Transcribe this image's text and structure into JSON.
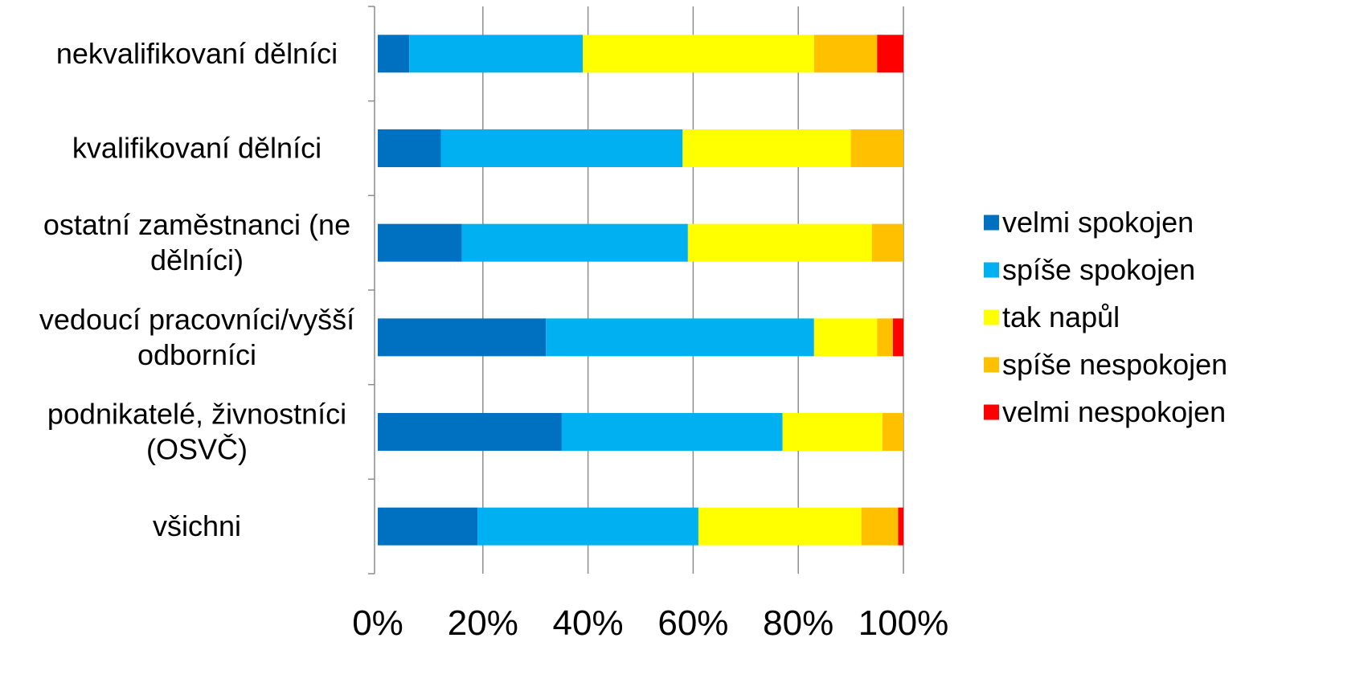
{
  "chart_data": {
    "type": "bar",
    "orientation": "horizontal",
    "stacked": "percent",
    "categories": [
      [
        "nekvalifikovaní dělníci"
      ],
      [
        "kvalifikovaní dělníci"
      ],
      [
        "ostatní zaměstnanci (ne",
        "dělníci)"
      ],
      [
        "vedoucí pracovníci/vyšší",
        "odborníci"
      ],
      [
        "podnikatelé, živnostníci",
        "(OSVČ)"
      ],
      [
        "všichni"
      ]
    ],
    "series": [
      {
        "name": "velmi spokojen",
        "color": "#0070C0",
        "values": [
          6,
          12,
          16,
          32,
          35,
          19
        ]
      },
      {
        "name": "spíše spokojen",
        "color": "#00B0F0",
        "values": [
          33,
          46,
          43,
          51,
          42,
          42
        ]
      },
      {
        "name": "tak napůl",
        "color": "#FFFF00",
        "values": [
          44,
          32,
          35,
          12,
          19,
          31
        ]
      },
      {
        "name": "spíše nespokojen",
        "color": "#FFC000",
        "values": [
          12,
          10,
          6,
          3,
          4,
          7
        ]
      },
      {
        "name": "velmi nespokojen",
        "color": "#FF0000",
        "values": [
          5,
          0,
          0,
          2,
          0,
          1
        ]
      }
    ],
    "x_ticks": [
      "0%",
      "20%",
      "40%",
      "60%",
      "80%",
      "100%"
    ],
    "xlim": [
      0,
      100
    ],
    "grid": "vertical",
    "legend_position": "right",
    "title": "",
    "xlabel": "",
    "ylabel": ""
  }
}
